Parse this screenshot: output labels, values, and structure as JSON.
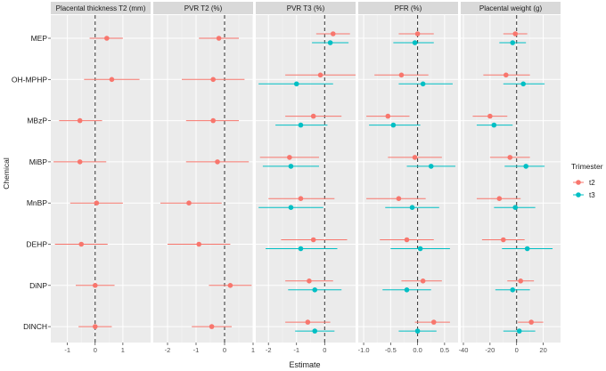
{
  "chart_data": {
    "type": "forest",
    "xlabel": "Estimate",
    "ylabel": "Chemical",
    "legend": {
      "title": "Trimester",
      "position": "right",
      "entries": [
        {
          "name": "t2",
          "color": "#F8766D"
        },
        {
          "name": "t3",
          "color": "#00BFC4"
        }
      ]
    },
    "categories": [
      "MEP",
      "OH-MPHP",
      "MBzP",
      "MiBP",
      "MnBP",
      "DEHP",
      "DiNP",
      "DINCH"
    ],
    "panels": [
      {
        "title": "Placental thickness T2 (mm)",
        "xlim": [
          -1.6,
          2.0
        ],
        "ticks": [
          -1,
          0,
          1
        ],
        "tick_labels": [
          "-1",
          "0",
          "1"
        ],
        "series": [
          {
            "name": "t2",
            "points": [
              {
                "category": "MEP",
                "est": 0.42,
                "lo": -0.2,
                "hi": 1.0
              },
              {
                "category": "OH-MPHP",
                "est": 0.6,
                "lo": -0.4,
                "hi": 1.6
              },
              {
                "category": "MBzP",
                "est": -0.55,
                "lo": -1.3,
                "hi": 0.25
              },
              {
                "category": "MiBP",
                "est": -0.55,
                "lo": -1.5,
                "hi": 0.4
              },
              {
                "category": "MnBP",
                "est": 0.05,
                "lo": -0.9,
                "hi": 1.0
              },
              {
                "category": "DEHP",
                "est": -0.5,
                "lo": -1.45,
                "hi": 0.45
              },
              {
                "category": "DiNP",
                "est": 0.0,
                "lo": -0.7,
                "hi": 0.7
              },
              {
                "category": "DINCH",
                "est": 0.0,
                "lo": -0.6,
                "hi": 0.6
              }
            ]
          }
        ]
      },
      {
        "title": "PVR T2 (%)",
        "xlim": [
          -2.5,
          1.0
        ],
        "ticks": [
          -2,
          -1,
          0,
          1
        ],
        "tick_labels": [
          "-2",
          "-1",
          "0",
          "1"
        ],
        "series": [
          {
            "name": "t2",
            "points": [
              {
                "category": "MEP",
                "est": -0.2,
                "lo": -0.9,
                "hi": 0.5
              },
              {
                "category": "OH-MPHP",
                "est": -0.4,
                "lo": -1.5,
                "hi": 0.7
              },
              {
                "category": "MBzP",
                "est": -0.4,
                "lo": -1.35,
                "hi": 0.5
              },
              {
                "category": "MiBP",
                "est": -0.25,
                "lo": -1.35,
                "hi": 0.85
              },
              {
                "category": "MnBP",
                "est": -1.25,
                "lo": -2.25,
                "hi": -0.1
              },
              {
                "category": "DEHP",
                "est": -0.9,
                "lo": -2.0,
                "hi": 0.2
              },
              {
                "category": "DiNP",
                "est": 0.2,
                "lo": -0.55,
                "hi": 0.95
              },
              {
                "category": "DINCH",
                "est": -0.45,
                "lo": -1.15,
                "hi": 0.25
              }
            ]
          }
        ]
      },
      {
        "title": "PVR T3 (%)",
        "xlim": [
          -2.45,
          1.1
        ],
        "ticks": [
          -2,
          -1,
          0
        ],
        "tick_labels": [
          "-2",
          "-1",
          "0"
        ],
        "series": [
          {
            "name": "t2",
            "points": [
              {
                "category": "MEP",
                "est": 0.3,
                "lo": -0.3,
                "hi": 0.9
              },
              {
                "category": "OH-MPHP",
                "est": -0.15,
                "lo": -1.4,
                "hi": 1.1
              },
              {
                "category": "MBzP",
                "est": -0.4,
                "lo": -1.4,
                "hi": 0.6
              },
              {
                "category": "MiBP",
                "est": -1.25,
                "lo": -2.3,
                "hi": -0.2
              },
              {
                "category": "MnBP",
                "est": -0.85,
                "lo": -2.0,
                "hi": 0.35
              },
              {
                "category": "DEHP",
                "est": -0.4,
                "lo": -1.55,
                "hi": 0.8
              },
              {
                "category": "DiNP",
                "est": -0.55,
                "lo": -1.4,
                "hi": 0.3
              },
              {
                "category": "DINCH",
                "est": -0.6,
                "lo": -1.4,
                "hi": 0.2
              }
            ]
          },
          {
            "name": "t3",
            "points": [
              {
                "category": "MEP",
                "est": 0.2,
                "lo": -0.45,
                "hi": 0.85
              },
              {
                "category": "OH-MPHP",
                "est": -1.0,
                "lo": -2.35,
                "hi": 0.3
              },
              {
                "category": "MBzP",
                "est": -0.85,
                "lo": -1.75,
                "hi": 0.1
              },
              {
                "category": "MiBP",
                "est": -1.2,
                "lo": -2.2,
                "hi": -0.2
              },
              {
                "category": "MnBP",
                "est": -1.2,
                "lo": -2.35,
                "hi": -0.05
              },
              {
                "category": "DEHP",
                "est": -0.85,
                "lo": -2.1,
                "hi": 0.45
              },
              {
                "category": "DiNP",
                "est": -0.35,
                "lo": -1.3,
                "hi": 0.6
              },
              {
                "category": "DINCH",
                "est": -0.35,
                "lo": -1.05,
                "hi": 0.35
              }
            ]
          }
        ]
      },
      {
        "title": "PFR (%)",
        "xlim": [
          -1.1,
          0.75
        ],
        "ticks": [
          -1.0,
          -0.5,
          0.0,
          0.5
        ],
        "tick_labels": [
          "-1.0",
          "-0.5",
          "0.0",
          "0.5"
        ],
        "series": [
          {
            "name": "t2",
            "points": [
              {
                "category": "MEP",
                "est": 0.0,
                "lo": -0.35,
                "hi": 0.3
              },
              {
                "category": "OH-MPHP",
                "est": -0.3,
                "lo": -0.8,
                "hi": 0.2
              },
              {
                "category": "MBzP",
                "est": -0.55,
                "lo": -0.95,
                "hi": -0.15
              },
              {
                "category": "MiBP",
                "est": -0.05,
                "lo": -0.55,
                "hi": 0.45
              },
              {
                "category": "MnBP",
                "est": -0.35,
                "lo": -0.95,
                "hi": 0.15
              },
              {
                "category": "DEHP",
                "est": -0.2,
                "lo": -0.7,
                "hi": 0.3
              },
              {
                "category": "DiNP",
                "est": 0.1,
                "lo": -0.3,
                "hi": 0.45
              },
              {
                "category": "DINCH",
                "est": 0.3,
                "lo": -0.05,
                "hi": 0.6
              }
            ]
          },
          {
            "name": "t3",
            "points": [
              {
                "category": "MEP",
                "est": -0.05,
                "lo": -0.45,
                "hi": 0.3
              },
              {
                "category": "OH-MPHP",
                "est": 0.1,
                "lo": -0.35,
                "hi": 0.65
              },
              {
                "category": "MBzP",
                "est": -0.45,
                "lo": -0.9,
                "hi": 0.05
              },
              {
                "category": "MiBP",
                "est": 0.25,
                "lo": -0.2,
                "hi": 0.7
              },
              {
                "category": "MnBP",
                "est": -0.1,
                "lo": -0.6,
                "hi": 0.4
              },
              {
                "category": "DEHP",
                "est": 0.05,
                "lo": -0.5,
                "hi": 0.6
              },
              {
                "category": "DiNP",
                "est": -0.2,
                "lo": -0.65,
                "hi": 0.25
              },
              {
                "category": "DINCH",
                "est": 0.0,
                "lo": -0.35,
                "hi": 0.35
              }
            ]
          }
        ]
      },
      {
        "title": "Placental weight (g)",
        "xlim": [
          -42,
          33
        ],
        "ticks": [
          -40,
          -20,
          0,
          20
        ],
        "tick_labels": [
          "-40",
          "-20",
          "0",
          "20"
        ],
        "series": [
          {
            "name": "t2",
            "points": [
              {
                "category": "MEP",
                "est": -1,
                "lo": -10,
                "hi": 8
              },
              {
                "category": "OH-MPHP",
                "est": -8,
                "lo": -25,
                "hi": 10
              },
              {
                "category": "MBzP",
                "est": -20,
                "lo": -33,
                "hi": -7
              },
              {
                "category": "MiBP",
                "est": -5,
                "lo": -20,
                "hi": 10
              },
              {
                "category": "MnBP",
                "est": -13,
                "lo": -30,
                "hi": 3
              },
              {
                "category": "DEHP",
                "est": -10,
                "lo": -26,
                "hi": 6
              },
              {
                "category": "DiNP",
                "est": 3,
                "lo": -7,
                "hi": 13
              },
              {
                "category": "DINCH",
                "est": 11,
                "lo": 1,
                "hi": 20
              }
            ]
          },
          {
            "name": "t3",
            "points": [
              {
                "category": "MEP",
                "est": -3,
                "lo": -13,
                "hi": 7
              },
              {
                "category": "OH-MPHP",
                "est": 5,
                "lo": -10,
                "hi": 21
              },
              {
                "category": "MBzP",
                "est": -17,
                "lo": -30,
                "hi": -3
              },
              {
                "category": "MiBP",
                "est": 7,
                "lo": -9,
                "hi": 21
              },
              {
                "category": "MnBP",
                "est": -1,
                "lo": -17,
                "hi": 14
              },
              {
                "category": "DEHP",
                "est": 8,
                "lo": -11,
                "hi": 27
              },
              {
                "category": "DiNP",
                "est": -3,
                "lo": -16,
                "hi": 10
              },
              {
                "category": "DINCH",
                "est": 2,
                "lo": -10,
                "hi": 14
              }
            ]
          }
        ]
      }
    ]
  }
}
